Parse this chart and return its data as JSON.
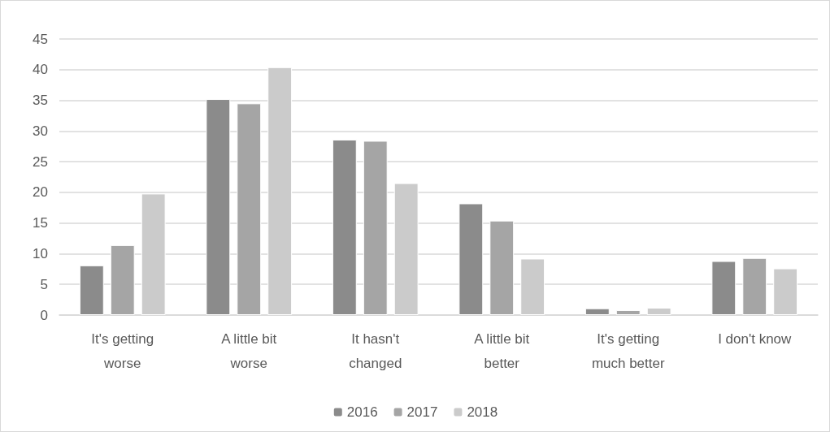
{
  "chart_data": {
    "type": "bar",
    "categories": [
      "It's getting\nworse",
      "A little bit\nworse",
      "It hasn't\nchanged",
      "A little bit\nbetter",
      "It's getting\nmuch better",
      "I don't know"
    ],
    "series": [
      {
        "name": "2016",
        "color": "#8b8b8b",
        "values": [
          8.1,
          35.2,
          28.6,
          18.2,
          1.1,
          8.8
        ]
      },
      {
        "name": "2017",
        "color": "#a5a5a5",
        "values": [
          11.4,
          34.5,
          28.4,
          15.4,
          0.8,
          9.3
        ]
      },
      {
        "name": "2018",
        "color": "#cbcbcb",
        "values": [
          19.8,
          40.4,
          21.5,
          9.2,
          1.2,
          7.6
        ]
      }
    ],
    "ylim": [
      0,
      45
    ],
    "yticks": [
      0,
      5,
      10,
      15,
      20,
      25,
      30,
      35,
      40,
      45
    ],
    "grid": "y",
    "legend": "bottom"
  }
}
